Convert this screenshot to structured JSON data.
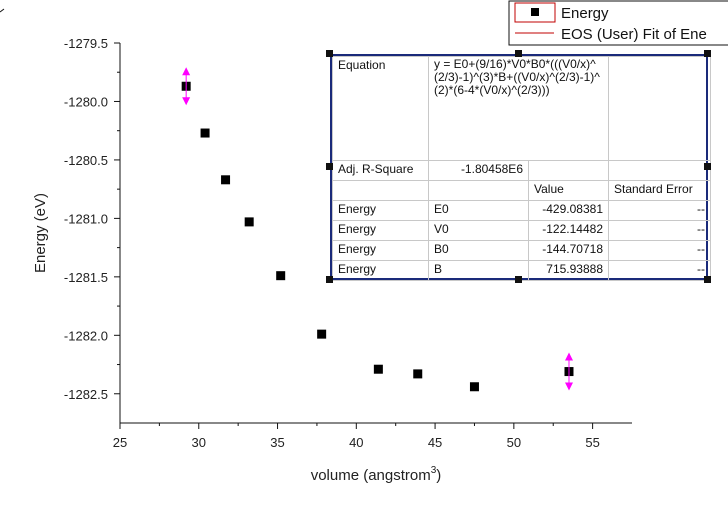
{
  "chart_data": {
    "type": "scatter",
    "xlabel": "volume (angstrom",
    "xlabel_sup": "3",
    "xlabel_close": ")",
    "ylabel": "Energy (eV)",
    "xlim": [
      25,
      57.5
    ],
    "ylim": [
      -1282.75,
      -1279.5
    ],
    "x_ticks": [
      25,
      30,
      35,
      40,
      45,
      50,
      55
    ],
    "y_ticks": [
      -1279.5,
      -1280.0,
      -1280.5,
      -1281.0,
      -1281.5,
      -1282.0,
      -1282.5
    ],
    "y_tick_labels": [
      "-1279.5",
      "-1280.0",
      "-1280.5",
      "-1281.0",
      "-1281.5",
      "-1282.0",
      "-1282.5"
    ],
    "series": [
      {
        "name": "Energy",
        "marker": "square",
        "color": "#000000",
        "x": [
          29.2,
          30.4,
          31.7,
          33.2,
          35.2,
          37.8,
          41.4,
          43.9,
          47.5,
          53.5
        ],
        "y": [
          -1279.87,
          -1280.27,
          -1280.67,
          -1281.03,
          -1281.49,
          -1281.99,
          -1282.29,
          -1282.33,
          -1282.44,
          -1282.31
        ]
      }
    ],
    "selected_points": [
      0,
      9
    ],
    "legend": {
      "placement": "top-right",
      "entries": [
        {
          "label": "Energy",
          "type": "marker",
          "color": "#000000"
        },
        {
          "label": "EOS (User) Fit of Ene",
          "type": "line",
          "color": "#c00000"
        }
      ]
    },
    "fit_table": {
      "equation_label": "Equation",
      "equation": "y = E0+(9/16)*V0*B0*(((V0/x)^(2/3)-1)^(3)*B+((V0/x)^(2/3)-1)^(2)*(6-4*(V0/x)^(2/3)))",
      "adj_r_label": "Adj. R-Square",
      "adj_r_value": "-1.80458E6",
      "col_value": "Value",
      "col_error": "Standard Error",
      "rows": [
        {
          "series": "Energy",
          "param": "E0",
          "value": "-429.08381",
          "error": "--"
        },
        {
          "series": "Energy",
          "param": "V0",
          "value": "-122.14482",
          "error": "--"
        },
        {
          "series": "Energy",
          "param": "B0",
          "value": "-144.70718",
          "error": "--"
        },
        {
          "series": "Energy",
          "param": "B",
          "value": "715.93888",
          "error": "--"
        }
      ]
    },
    "grid": false
  }
}
